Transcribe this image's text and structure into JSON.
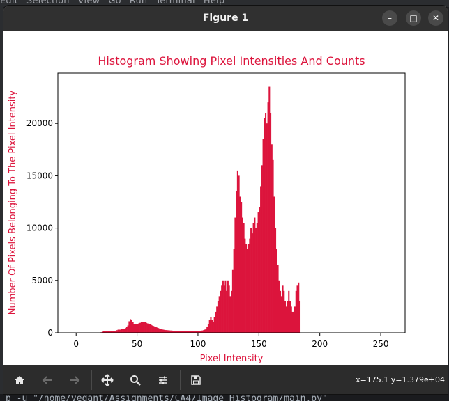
{
  "editor": {
    "menu": [
      "Edit",
      "Selection",
      "View",
      "Go",
      "Run",
      "Terminal",
      "Help"
    ],
    "terminal_line": "p  -u \"/home/vedant/Assignments/CA4/Image Histogram/main.py\""
  },
  "window": {
    "title": "Figure 1",
    "minimize": "–",
    "maximize": "□",
    "close": "✕"
  },
  "toolbar": {
    "buttons": [
      "home-icon",
      "back-icon",
      "forward-icon",
      "pan-icon",
      "zoom-icon",
      "configure-subplots-icon",
      "save-icon"
    ],
    "coordinates": "x=175.1 y=1.379e+04"
  },
  "colors": {
    "bars": "#dc143c",
    "title": "#dc143c",
    "labels": "#dc143c"
  },
  "chart_data": {
    "type": "bar",
    "title": "Histogram Showing Pixel Intensities And Counts",
    "xlabel": "Pixel Intensity",
    "ylabel": "Number Of Pixels Belonging To The Pixel Intensity",
    "xlim": [
      -15,
      270
    ],
    "ylim": [
      0,
      24800
    ],
    "xticks": [
      0,
      50,
      100,
      150,
      200,
      250
    ],
    "yticks": [
      0,
      5000,
      10000,
      15000,
      20000
    ],
    "grid": false,
    "bin_start": 0,
    "bin_width": 1,
    "values": [
      0,
      0,
      0,
      0,
      0,
      0,
      0,
      0,
      0,
      0,
      0,
      0,
      0,
      0,
      0,
      0,
      0,
      0,
      0,
      0,
      50,
      100,
      150,
      150,
      200,
      200,
      200,
      200,
      180,
      150,
      150,
      150,
      200,
      250,
      300,
      300,
      300,
      350,
      350,
      400,
      450,
      550,
      700,
      1100,
      1300,
      1250,
      1000,
      850,
      800,
      800,
      850,
      900,
      950,
      1000,
      1000,
      1050,
      1000,
      950,
      900,
      850,
      800,
      750,
      700,
      650,
      600,
      550,
      500,
      450,
      400,
      350,
      320,
      300,
      280,
      260,
      250,
      240,
      230,
      220,
      210,
      200,
      200,
      200,
      200,
      200,
      200,
      200,
      200,
      200,
      200,
      200,
      200,
      200,
      200,
      200,
      200,
      200,
      200,
      200,
      200,
      200,
      200,
      200,
      200,
      220,
      250,
      300,
      400,
      600,
      800,
      1200,
      1500,
      1200,
      1000,
      1500,
      2000,
      2500,
      3000,
      3500,
      4000,
      4500,
      5000,
      4500,
      5000,
      4000,
      5000,
      4500,
      3500,
      4000,
      6000,
      8000,
      11000,
      13500,
      15500,
      15000,
      13000,
      12500,
      11000,
      10500,
      9000,
      8500,
      8000,
      8500,
      9000,
      10000,
      9500,
      10500,
      11000,
      10000,
      10500,
      11500,
      12000,
      14000,
      16000,
      18500,
      20500,
      21000,
      20000,
      22000,
      23500,
      21000,
      18000,
      16500,
      13000,
      10000,
      8000,
      6500,
      5000,
      4000,
      3500,
      4500,
      4000,
      3000,
      2500,
      3000,
      4000,
      3000,
      2500,
      2000,
      2000,
      2500,
      4000,
      4500,
      4800,
      3000,
      0,
      0,
      0,
      0,
      0,
      0,
      0,
      0,
      0,
      0,
      0,
      0,
      0,
      0,
      0,
      0,
      0,
      0,
      0,
      0,
      0,
      0,
      0,
      0,
      0,
      0,
      0,
      0,
      0,
      0,
      0,
      0,
      0,
      0,
      0,
      0,
      0,
      0,
      0,
      0,
      0,
      0,
      0,
      0,
      0,
      0,
      0,
      0,
      0,
      0,
      0,
      0,
      0,
      0,
      0,
      0,
      0,
      0,
      0,
      0,
      0,
      0,
      0,
      0,
      0,
      0,
      0,
      0
    ]
  }
}
